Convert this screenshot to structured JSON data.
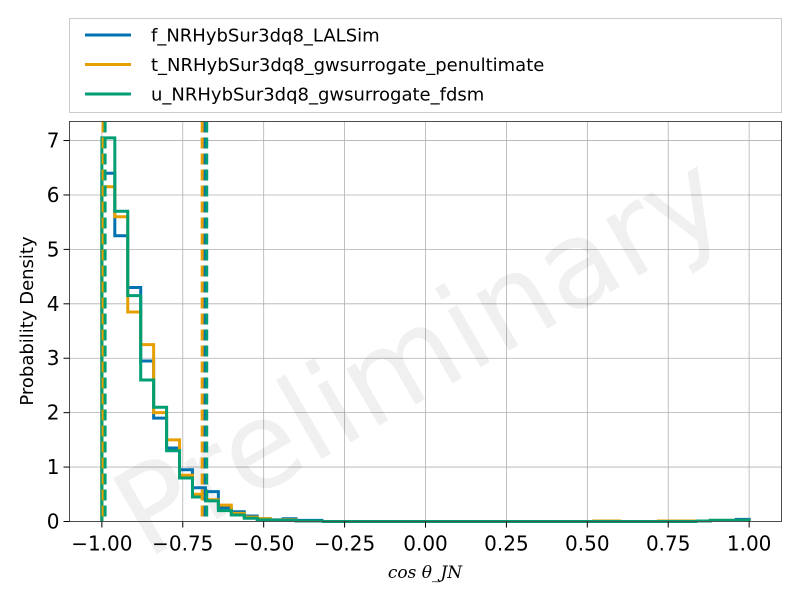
{
  "chart_data": {
    "type": "step-histogram",
    "xlabel": "cos θ_JN",
    "ylabel": "Probability Density",
    "xlim": [
      -1.1,
      1.1
    ],
    "ylim": [
      0,
      7.35
    ],
    "xticks": [
      -1.0,
      -0.75,
      -0.5,
      -0.25,
      0.0,
      0.25,
      0.5,
      0.75,
      1.0
    ],
    "xtick_labels": [
      "−1.00",
      "−0.75",
      "−0.50",
      "−0.25",
      "0.00",
      "0.25",
      "0.50",
      "0.75",
      "1.00"
    ],
    "yticks": [
      0,
      1,
      2,
      3,
      4,
      5,
      6,
      7
    ],
    "ytick_labels": [
      "0",
      "1",
      "2",
      "3",
      "4",
      "5",
      "6",
      "7"
    ],
    "grid": true,
    "legend_position": "above-plot",
    "watermark": "Preliminary",
    "bin_edges": [
      -1.0,
      -0.96,
      -0.92,
      -0.88,
      -0.84,
      -0.8,
      -0.76,
      -0.72,
      -0.68,
      -0.64,
      -0.6,
      -0.56,
      -0.52,
      -0.48,
      -0.44,
      -0.4,
      -0.36,
      -0.32
    ],
    "series": [
      {
        "name": "f_NRHybSur3dq8_LALSim",
        "color": "#0072b2",
        "values": [
          6.4,
          5.25,
          4.3,
          2.95,
          1.9,
          1.35,
          0.95,
          0.62,
          0.55,
          0.25,
          0.18,
          0.1,
          0.05,
          0.03,
          0.05,
          0.02,
          0.02,
          0.0
        ],
        "tail_x": [
          0.84,
          0.88,
          0.92,
          0.96,
          1.0
        ],
        "tail_values": [
          0.01,
          0.02,
          0.02,
          0.04
        ],
        "dashed_lines_x": [
          -0.993,
          -0.683
        ]
      },
      {
        "name": "t_NRHybSur3dq8_gwsurrogate_penultimate",
        "color": "#e69f00",
        "values": [
          6.15,
          5.6,
          3.85,
          3.25,
          2.0,
          1.5,
          0.85,
          0.5,
          0.4,
          0.3,
          0.15,
          0.08,
          0.05,
          0.02,
          0.03,
          0.01,
          0.01,
          0.0
        ],
        "tail_x": [
          0.52,
          0.56,
          0.6,
          0.72,
          0.76,
          0.8,
          0.84,
          0.88,
          0.92,
          0.96,
          1.0
        ],
        "tail_values": [
          0.01,
          0.01,
          0.0,
          0.01,
          0.01,
          0.01,
          0.01,
          0.02,
          0.02,
          0.02
        ],
        "dashed_lines_x": [
          -0.996,
          -0.69
        ]
      },
      {
        "name": "u_NRHybSur3dq8_gwsurrogate_fdsm",
        "color": "#009e73",
        "values": [
          7.05,
          5.7,
          4.15,
          2.6,
          2.1,
          1.3,
          0.8,
          0.45,
          0.38,
          0.2,
          0.12,
          0.06,
          0.03,
          0.02,
          0.02,
          0.01,
          0.01,
          0.0
        ],
        "tail_x": [
          0.84,
          0.88,
          0.92,
          0.96,
          1.0
        ],
        "tail_values": [
          0.01,
          0.02,
          0.02,
          0.02
        ],
        "dashed_lines_x": [
          -0.99,
          -0.676
        ]
      }
    ]
  }
}
